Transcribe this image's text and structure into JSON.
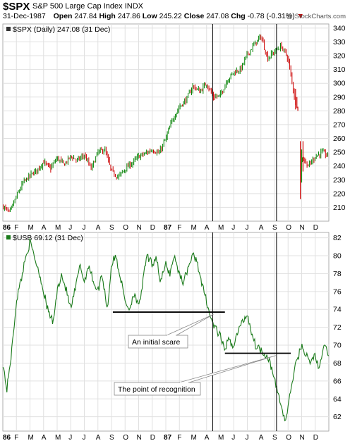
{
  "header": {
    "symbol": "$SPX",
    "name": "S&P 500 Large Cap Index",
    "exchange": "INDX",
    "date": "31-Dec-1987",
    "open_label": "Open",
    "open": "247.84",
    "high_label": "High",
    "high": "247.86",
    "low_label": "Low",
    "low": "245.22",
    "close_label": "Close",
    "close": "247.08",
    "chg_label": "Chg",
    "chg": "-0.78 (-0.31%)",
    "chg_marker": "▼",
    "watermark": "@ StockCharts.com"
  },
  "chart_data": [
    {
      "type": "candlestick",
      "legend": "$SPX (Daily) 247.08 (31 Dec)",
      "ylim": [
        200,
        343
      ],
      "y_ticks": [
        210,
        220,
        230,
        240,
        250,
        260,
        270,
        280,
        290,
        300,
        310,
        320,
        330,
        340
      ],
      "x_ticks": [
        "86",
        "F",
        "M",
        "A",
        "M",
        "J",
        "J",
        "A",
        "S",
        "O",
        "N",
        "D",
        "87",
        "F",
        "M",
        "A",
        "M",
        "J",
        "J",
        "A",
        "S",
        "O",
        "N",
        "D"
      ],
      "colors": {
        "up": "#008000",
        "down": "#cc0000",
        "grid": "#e0e0e0"
      },
      "vertical_markers": [
        "1987-04-14",
        "1987-09-04"
      ],
      "series": [
        {
          "values": [
            [
              0,
              211
            ],
            [
              0.5,
              206
            ],
            [
              1,
              218
            ],
            [
              1.5,
              228
            ],
            [
              2,
              233
            ],
            [
              2.5,
              237
            ],
            [
              3,
              243
            ],
            [
              3.5,
              238
            ],
            [
              4,
              246
            ],
            [
              4.5,
              241
            ],
            [
              5,
              247
            ],
            [
              5.5,
              244
            ],
            [
              6,
              248
            ],
            [
              6.5,
              238
            ],
            [
              7,
              250
            ],
            [
              7.5,
              252
            ],
            [
              8,
              236
            ],
            [
              8.5,
              232
            ],
            [
              9,
              238
            ],
            [
              9.5,
              242
            ],
            [
              10,
              247
            ],
            [
              10.5,
              249
            ],
            [
              11,
              252
            ],
            [
              11.5,
              249
            ],
            [
              12,
              260
            ],
            [
              12.5,
              274
            ],
            [
              13,
              283
            ],
            [
              13.5,
              288
            ],
            [
              14,
              298
            ],
            [
              14.5,
              294
            ],
            [
              15,
              300
            ],
            [
              15.5,
              290
            ],
            [
              16,
              291
            ],
            [
              16.5,
              302
            ],
            [
              17,
              308
            ],
            [
              17.5,
              310
            ],
            [
              18,
              321
            ],
            [
              18.5,
              328
            ],
            [
              19,
              334
            ],
            [
              19.5,
              318
            ],
            [
              20,
              323
            ],
            [
              20.5,
              327
            ],
            [
              21,
              318
            ],
            [
              21.3,
              300
            ],
            [
              21.6,
              282
            ],
            [
              21.8,
              228
            ],
            [
              22,
              247
            ],
            [
              22.5,
              240
            ],
            [
              23,
              247
            ],
            [
              23.5,
              250
            ],
            [
              24,
              247
            ]
          ]
        }
      ]
    },
    {
      "type": "line",
      "legend": "$USB 69.12 (31 Dec)",
      "ylim": [
        60.4,
        82.6
      ],
      "y_ticks": [
        62,
        64,
        66,
        68,
        70,
        72,
        74,
        76,
        78,
        80,
        82
      ],
      "x_ticks": [
        "86",
        "F",
        "M",
        "A",
        "M",
        "J",
        "J",
        "A",
        "S",
        "O",
        "N",
        "D",
        "87",
        "F",
        "M",
        "A",
        "M",
        "J",
        "J",
        "A",
        "S",
        "O",
        "N",
        "D"
      ],
      "colors": {
        "line": "#1a7a1a",
        "grid": "#e0e0e0"
      },
      "vertical_markers": [
        "1987-04-14",
        "1987-09-04"
      ],
      "horizontal_lines": [
        {
          "from": "1986-09",
          "to": "1987-05",
          "value": 73.7
        },
        {
          "from": "1987-05",
          "to": "1987-09-15",
          "value": 69.1
        }
      ],
      "annotations": [
        "An initial scare",
        "The point of recognition"
      ],
      "series": [
        {
          "values": [
            [
              0,
              68
            ],
            [
              0.3,
              65
            ],
            [
              0.7,
              70
            ],
            [
              1,
              75
            ],
            [
              1.3,
              77
            ],
            [
              1.7,
              80
            ],
            [
              2,
              81.5
            ],
            [
              2.3,
              80
            ],
            [
              2.7,
              78
            ],
            [
              3,
              76
            ],
            [
              3.3,
              74
            ],
            [
              3.7,
              72.5
            ],
            [
              4,
              76
            ],
            [
              4.3,
              78
            ],
            [
              4.7,
              76
            ],
            [
              5,
              74
            ],
            [
              5.3,
              76
            ],
            [
              5.7,
              79
            ],
            [
              6,
              77
            ],
            [
              6.3,
              79
            ],
            [
              6.7,
              77
            ],
            [
              7,
              76
            ],
            [
              7.3,
              78
            ],
            [
              7.7,
              74
            ],
            [
              8,
              79
            ],
            [
              8.3,
              80
            ],
            [
              8.6,
              78
            ],
            [
              9,
              75
            ],
            [
              9.3,
              74
            ],
            [
              9.7,
              76
            ],
            [
              10,
              74
            ],
            [
              10.3,
              77
            ],
            [
              10.6,
              80
            ],
            [
              11,
              79
            ],
            [
              11.3,
              80
            ],
            [
              11.6,
              77
            ],
            [
              12,
              79
            ],
            [
              12.3,
              78
            ],
            [
              12.6,
              80
            ],
            [
              13,
              78
            ],
            [
              13.3,
              77
            ],
            [
              13.7,
              79
            ],
            [
              14,
              80
            ],
            [
              14.3,
              79.5
            ],
            [
              14.6,
              77
            ],
            [
              15,
              75
            ],
            [
              15.3,
              73
            ],
            [
              15.6,
              72
            ],
            [
              16,
              71
            ],
            [
              16.3,
              69.5
            ],
            [
              16.6,
              70.5
            ],
            [
              17,
              70
            ],
            [
              17.3,
              71.5
            ],
            [
              17.6,
              72.5
            ],
            [
              18,
              73.5
            ],
            [
              18.3,
              71.5
            ],
            [
              18.6,
              70
            ],
            [
              19,
              69.5
            ],
            [
              19.3,
              69
            ],
            [
              19.6,
              68.5
            ],
            [
              20,
              66
            ],
            [
              20.3,
              64.5
            ],
            [
              20.6,
              62.5
            ],
            [
              20.8,
              61.5
            ],
            [
              21,
              63
            ],
            [
              21.3,
              66
            ],
            [
              21.6,
              68
            ],
            [
              22,
              70
            ],
            [
              22.3,
              69
            ],
            [
              22.6,
              68
            ],
            [
              23,
              69
            ],
            [
              23.3,
              67
            ],
            [
              23.6,
              70
            ],
            [
              24,
              69.1
            ]
          ]
        }
      ]
    }
  ]
}
